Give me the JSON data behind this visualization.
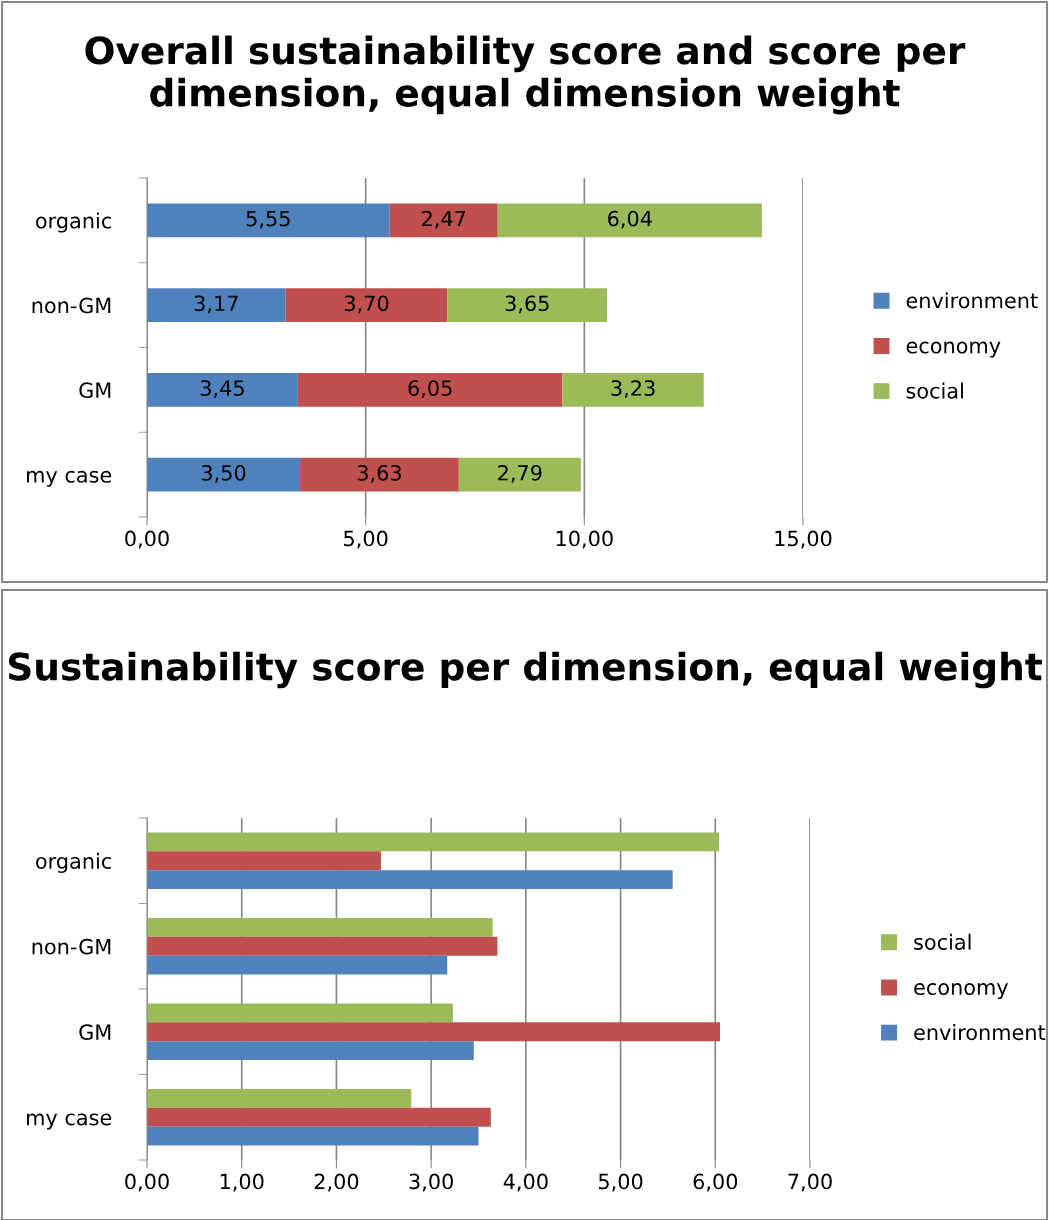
{
  "chart_data": [
    {
      "type": "bar",
      "orientation": "horizontal",
      "stacked": true,
      "title": "Overall sustainability score and score per dimension, equal dimension weight",
      "categories": [
        "organic",
        "non-GM",
        "GM",
        "my case"
      ],
      "series": [
        {
          "name": "environment",
          "color": "#4f81bd",
          "values": [
            5.55,
            3.17,
            3.45,
            3.5
          ],
          "value_labels": [
            "5,55",
            "3,17",
            "3,45",
            "3,50"
          ]
        },
        {
          "name": "economy",
          "color": "#c0504d",
          "values": [
            2.47,
            3.7,
            6.05,
            3.63
          ],
          "value_labels": [
            "2,47",
            "3,70",
            "6,05",
            "3,63"
          ]
        },
        {
          "name": "social",
          "color": "#9bbb59",
          "values": [
            6.04,
            3.65,
            3.23,
            2.79
          ],
          "value_labels": [
            "6,04",
            "3,65",
            "3,23",
            "2,79"
          ]
        }
      ],
      "xlim": [
        0,
        15
      ],
      "xticks": [
        {
          "value": 0,
          "label": "0,00"
        },
        {
          "value": 5,
          "label": "5,00"
        },
        {
          "value": 10,
          "label": "10,00"
        },
        {
          "value": 15,
          "label": "15,00"
        }
      ],
      "grid": "x",
      "legend": "right"
    },
    {
      "type": "bar",
      "orientation": "horizontal",
      "title": "Sustainability score per dimension, equal weight",
      "categories": [
        "organic",
        "non-GM",
        "GM",
        "my case"
      ],
      "series": [
        {
          "name": "social",
          "color": "#9bbb59",
          "values": [
            6.04,
            3.65,
            3.23,
            2.79
          ]
        },
        {
          "name": "economy",
          "color": "#c0504d",
          "values": [
            2.47,
            3.7,
            6.05,
            3.63
          ]
        },
        {
          "name": "environment",
          "color": "#4f81bd",
          "values": [
            5.55,
            3.17,
            3.45,
            3.5
          ]
        }
      ],
      "xlim": [
        0,
        7
      ],
      "xticks": [
        {
          "value": 0,
          "label": "0,00"
        },
        {
          "value": 1,
          "label": "1,00"
        },
        {
          "value": 2,
          "label": "2,00"
        },
        {
          "value": 3,
          "label": "3,00"
        },
        {
          "value": 4,
          "label": "4,00"
        },
        {
          "value": 5,
          "label": "5,00"
        },
        {
          "value": 6,
          "label": "6,00"
        },
        {
          "value": 7,
          "label": "7,00"
        }
      ],
      "grid": "x",
      "legend": "right"
    }
  ]
}
